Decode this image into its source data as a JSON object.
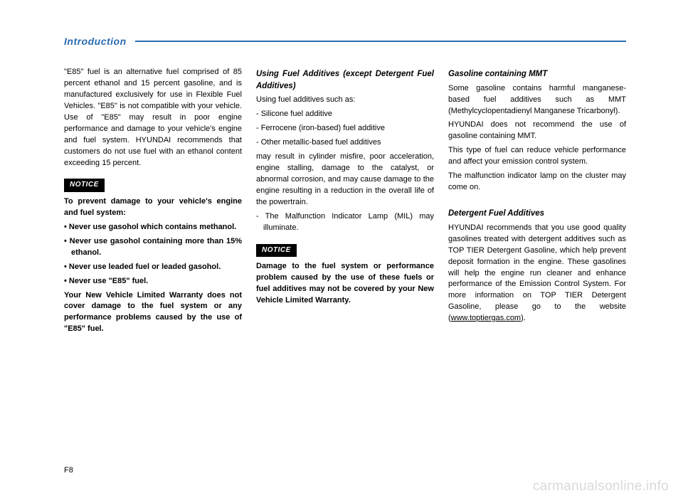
{
  "header": {
    "section": "Introduction"
  },
  "col1": {
    "p1": "\"E85\" fuel is an alternative fuel comprised of 85 percent ethanol and 15 percent gasoline, and is manufactured exclusively for use in Flexible Fuel Vehicles. \"E85\" is not compatible with your vehicle. Use of \"E85\" may result in poor engine performance and damage to your vehicle's engine and fuel system. HYUNDAI recommends that customers do not use fuel with an ethanol content exceeding 15 percent.",
    "notice": "NOTICE",
    "b1": "To prevent damage to your vehicle's engine and fuel system:",
    "li1": "• Never use gasohol which contains methanol.",
    "li2": "• Never use gasohol containing more than 15% ethanol.",
    "li3": "• Never use leaded fuel or leaded gasohol.",
    "li4": "• Never use \"E85\" fuel.",
    "b2": "Your New Vehicle Limited Warranty does not cover damage to the fuel system or any performance problems caused by the use of \"E85\" fuel."
  },
  "col2": {
    "h1": "Using Fuel Additives (except Detergent Fuel Additives)",
    "p1": "Using fuel additives such as:",
    "d1": "- Silicone fuel additive",
    "d2": "- Ferrocene (iron-based) fuel additive",
    "d3": "- Other metallic-based fuel additives",
    "p2": "may result in cylinder misfire, poor acceleration, engine stalling, damage to the catalyst, or abnormal corrosion, and may cause damage to the engine resulting in a reduction in the overall life of the powertrain.",
    "d4": "- The Malfunction Indicator Lamp (MIL) may illuminate.",
    "notice": "NOTICE",
    "b1": "Damage to the fuel system or performance problem caused by the use of these fuels or fuel additives may not be covered by your New Vehicle Limited Warranty."
  },
  "col3": {
    "h1": "Gasoline containing MMT",
    "p1": "Some gasoline contains harmful manganese-based fuel additives such as MMT (Methylcyclopentadienyl Manganese Tricarbonyl).",
    "p2": "HYUNDAI does not recommend the use of gasoline containing MMT.",
    "p3": "This type of fuel can reduce vehicle performance and affect your emission control system.",
    "p4": "The malfunction indicator lamp on the cluster may come on.",
    "h2": "Detergent Fuel Additives",
    "p5a": "HYUNDAI recommends that you use good quality gasolines treated with detergent additives such as TOP TIER Detergent Gasoline, which help prevent deposit formation in the engine. These gasolines will help the engine run cleaner and enhance performance of the Emission Control System. For more information on TOP TIER Detergent Gasoline, please go to the website (",
    "link": "www.toptiergas.com",
    "p5b": ")."
  },
  "pagenum": "F8",
  "watermark": "carmanualsonline.info"
}
